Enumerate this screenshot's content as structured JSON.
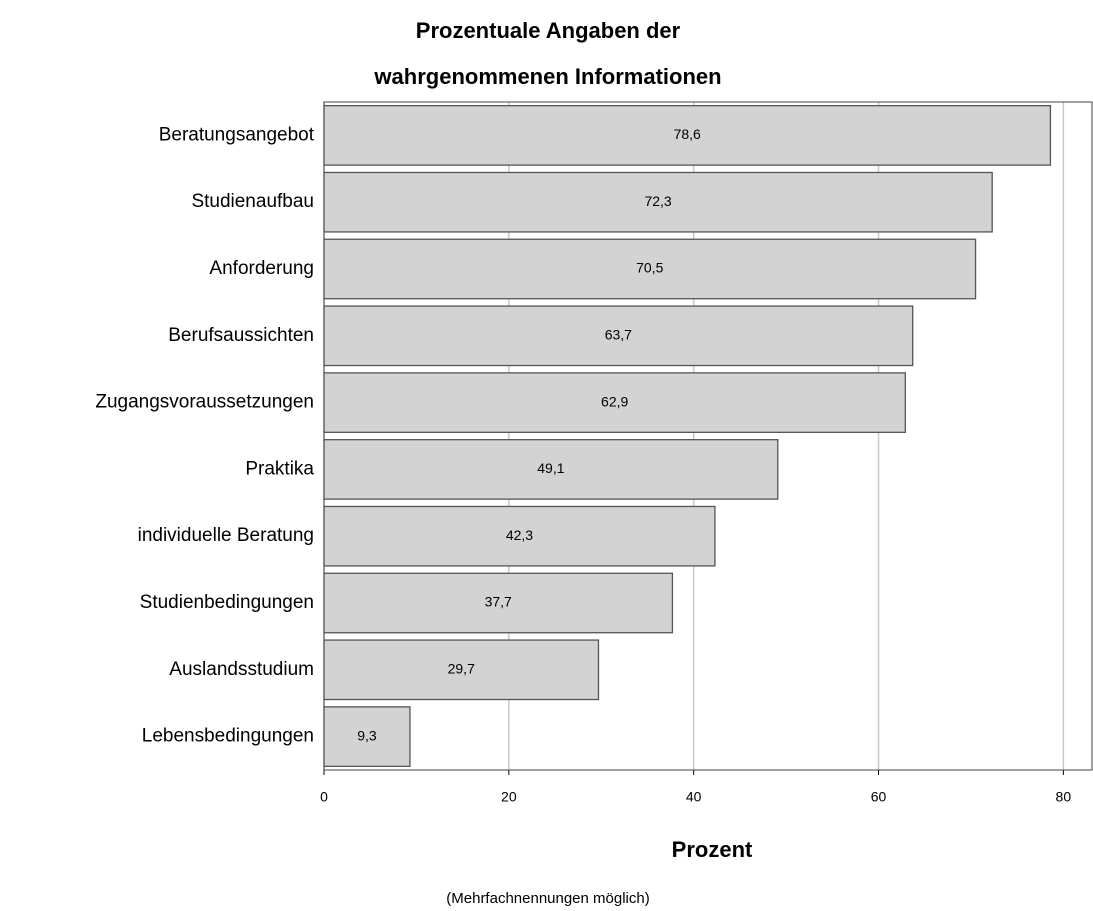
{
  "chart_data": {
    "type": "barh",
    "title": "Prozentuale Angaben der wahrgenommenen Informationen",
    "x_label": "Prozent",
    "annotation": "(Mehrfachnennungen möglich)",
    "categories": [
      "Beratungsangebot",
      "Studienaufbau",
      "Anforderung",
      "Berufsaussichten",
      "Zugangsvoraussetzungen",
      "Praktika",
      "individuelle Beratung",
      "Studienbedingungen",
      "Auslandsstudium",
      "Lebensbedingungen"
    ],
    "values": [
      78.6,
      72.3,
      70.5,
      63.7,
      62.9,
      49.1,
      42.3,
      37.7,
      29.7,
      9.3
    ],
    "value_labels": [
      "78,6",
      "72,3",
      "70,5",
      "63,7",
      "62,9",
      "49,1",
      "42,3",
      "37,7",
      "29,7",
      "9,3"
    ],
    "color": "#d3d3d3",
    "xlim": [
      0,
      83.1
    ],
    "xticks": [
      0,
      20,
      40,
      60,
      80
    ],
    "grid": true
  }
}
